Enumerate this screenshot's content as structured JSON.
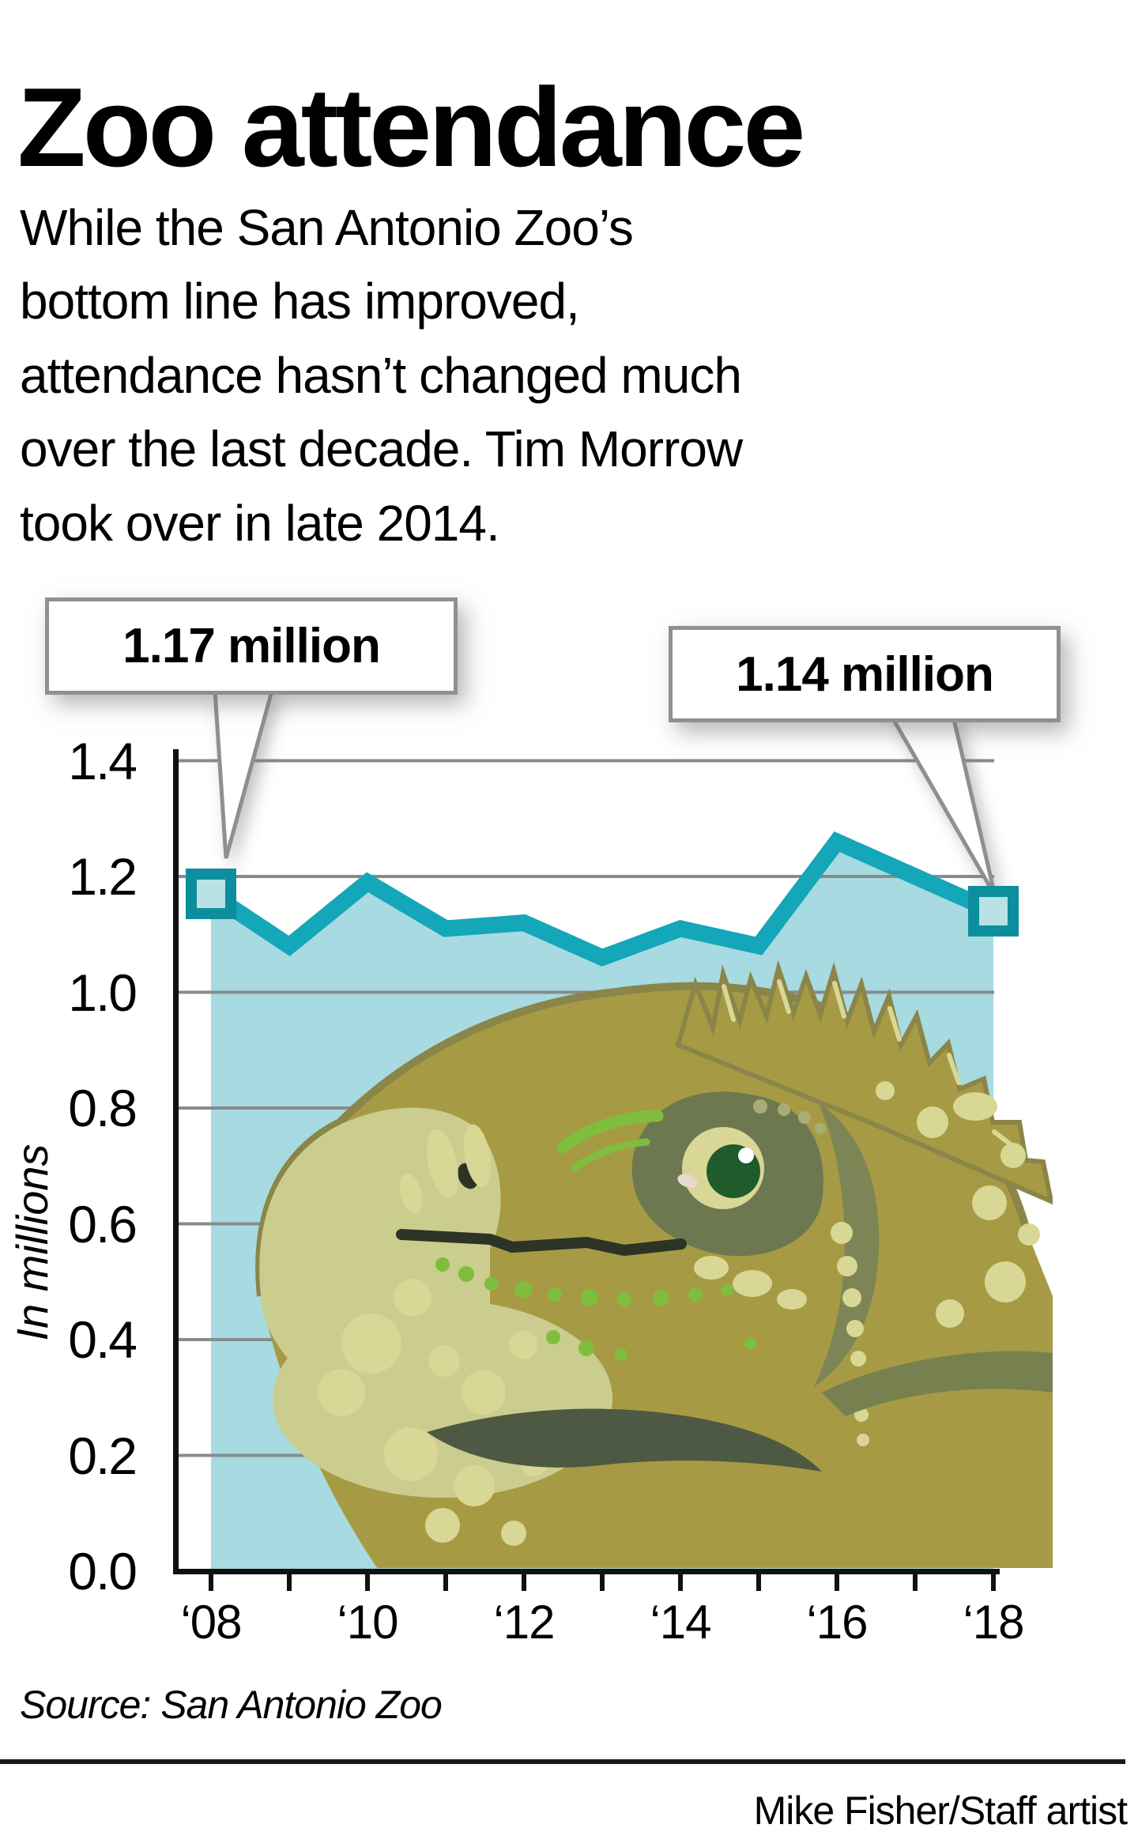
{
  "title": "Zoo attendance",
  "intro": "While the San Antonio Zoo’s\nbottom line has improved,\nattendance hasn’t changed much\nover the last decade. Tim Morrow\ntook over in late 2014.",
  "callouts": {
    "first": "1.17 million",
    "second": "1.14 million"
  },
  "y_axis": {
    "label": "In millions",
    "ticks": [
      "1.4",
      "1.2",
      "1.0",
      "0.8",
      "0.6",
      "0.4",
      "0.2",
      "0.0"
    ]
  },
  "x_axis": {
    "labels": [
      "‘08",
      "‘10",
      "‘12",
      "‘14",
      "‘16",
      "‘18"
    ]
  },
  "source": "Source: San Antonio Zoo",
  "credit": "Mike Fisher/Staff artist",
  "colors": {
    "line": "#14a6b9",
    "area_fill": "#a7dae1",
    "marker_border": "#0d8e9f",
    "marker_fill": "#b9e1e6",
    "grid": "#878b8c",
    "axis": "#111111",
    "callout_border": "#8f9093",
    "iguana_body": "#a79a45",
    "iguana_outline": "#8a8548",
    "iguana_pale": "#cbcd8e",
    "iguana_spot": "#d9d795",
    "iguana_dark": "#4d5943",
    "iguana_darkest": "#2c3426",
    "iguana_eyepatch": "#6d7850",
    "iguana_iris": "#1f5c2c",
    "iguana_green": "#7fbe3c",
    "iguana_jowl": "#7d8556"
  },
  "chart_data": {
    "type": "area",
    "title": "Zoo attendance",
    "ylabel": "In millions",
    "xlabel": "",
    "ylim": [
      0.0,
      1.4
    ],
    "grid": true,
    "x": [
      2008,
      2009,
      2010,
      2011,
      2012,
      2013,
      2014,
      2015,
      2016,
      2017,
      2018
    ],
    "values": [
      1.17,
      1.08,
      1.19,
      1.11,
      1.12,
      1.06,
      1.11,
      1.08,
      1.26,
      1.2,
      1.14
    ],
    "annotations": [
      {
        "x": 2008,
        "value": 1.17,
        "label": "1.17 million"
      },
      {
        "x": 2018,
        "value": 1.14,
        "label": "1.14 million"
      }
    ]
  }
}
